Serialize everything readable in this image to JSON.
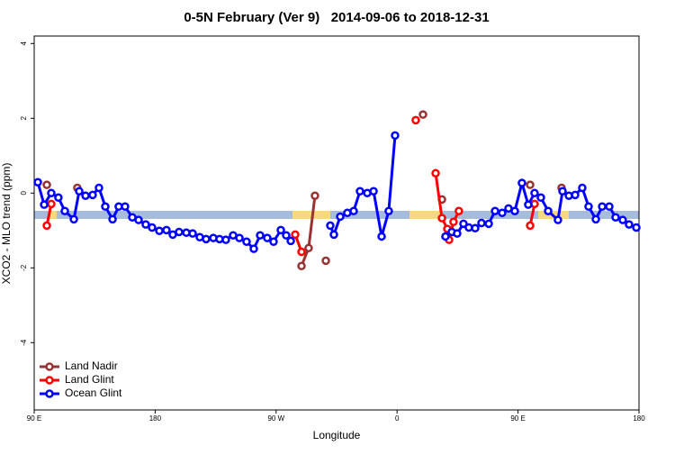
{
  "chart_data": {
    "type": "line",
    "title": "0-5N February (Ver 9)   2014-09-06 to 2018-12-31",
    "x_label": "Longitude",
    "y_label": "XCO2 - MLO trend (ppm)",
    "xlim": [
      90,
      540
    ],
    "ylim": [
      -5.8,
      4.2
    ],
    "xticks": [
      {
        "value": 90,
        "label": "90 E"
      },
      180,
      {
        "value": 270,
        "label": "90 W"
      },
      {
        "value": 360,
        "label": "0"
      },
      {
        "value": 450,
        "label": "90 E"
      },
      {
        "value": 540,
        "label": "180"
      }
    ],
    "yticks": [
      -4,
      -2,
      0,
      2,
      4
    ],
    "legend": "bottom-left",
    "series": [
      {
        "name": "Land Nadir",
        "color": "#993333",
        "x": [
          99.4,
          null,
          122.1,
          null,
          288.9,
          294.2,
          298.9,
          null,
          307,
          null,
          379.3,
          null,
          393.4,
          null,
          459,
          null,
          482.4
        ],
        "values": [
          0.22,
          null,
          0.14,
          null,
          -1.95,
          -1.47,
          -0.07,
          null,
          -1.81,
          null,
          2.1,
          null,
          -0.17,
          null,
          0.22,
          null,
          0.14
        ]
      },
      {
        "name": "Land Glint",
        "color": "#ff0000",
        "x": [
          99.4,
          102.7,
          null,
          284.2,
          288.9,
          null,
          373.9,
          null,
          388.7,
          393.4,
          397.4,
          398.7,
          402,
          406,
          null,
          459,
          462.3
        ],
        "values": [
          -0.87,
          -0.29,
          null,
          -1.11,
          -1.57,
          null,
          1.95,
          null,
          0.53,
          -0.67,
          -0.96,
          -1.25,
          -0.77,
          -0.48,
          null,
          -0.87,
          -0.29
        ]
      },
      {
        "name": "Ocean Glint",
        "color": "#0000ff",
        "x": [
          92.7,
          97.4,
          102.7,
          108,
          112.8,
          119.5,
          123.5,
          128.2,
          133.5,
          138.2,
          142.9,
          148.3,
          152.9,
          157.6,
          163,
          167.7,
          173,
          177.7,
          183.1,
          188.4,
          193.1,
          197.8,
          203.2,
          207.9,
          213.2,
          217.9,
          223.3,
          227.9,
          232.6,
          238,
          242.7,
          248,
          253.4,
          258.1,
          263.4,
          268.1,
          273.5,
          277.5,
          280.9,
          null,
          310.3,
          313,
          317.7,
          323,
          327.7,
          332.4,
          337.8,
          342.5,
          348.5,
          353.8,
          358.5,
          null,
          396,
          400.7,
          404.7,
          409.4,
          413.4,
          418.1,
          422.8,
          428.2,
          432.9,
          438.2,
          442.9,
          447.6,
          452.9,
          457.6,
          462.3,
          467,
          472.4,
          479.7,
          483.1,
          487.8,
          492.5,
          497.8,
          502.5,
          507.9,
          512.6,
          517.9,
          522.6,
          527.9,
          532.6,
          538
        ],
        "values": [
          0.29,
          -0.31,
          0,
          -0.12,
          -0.48,
          -0.7,
          0.05,
          -0.07,
          -0.05,
          0.14,
          -0.36,
          -0.7,
          -0.36,
          -0.36,
          -0.65,
          -0.72,
          -0.84,
          -0.92,
          -1.01,
          -0.99,
          -1.11,
          -1.04,
          -1.06,
          -1.08,
          -1.18,
          -1.23,
          -1.2,
          -1.23,
          -1.25,
          -1.13,
          -1.2,
          -1.3,
          -1.49,
          -1.13,
          -1.2,
          -1.3,
          -0.99,
          -1.13,
          -1.28,
          null,
          -0.87,
          -1.11,
          -0.63,
          -0.53,
          -0.48,
          0.05,
          0,
          0.05,
          -1.16,
          -0.48,
          1.54,
          null,
          -1.16,
          -1.04,
          -1.08,
          -0.82,
          -0.92,
          -0.94,
          -0.8,
          -0.82,
          -0.48,
          -0.53,
          -0.41,
          -0.48,
          0.27,
          -0.31,
          0,
          -0.12,
          -0.48,
          -0.72,
          0.05,
          -0.07,
          -0.05,
          0.14,
          -0.36,
          -0.7,
          -0.36,
          -0.36,
          -0.65,
          -0.72,
          -0.84,
          -0.92
        ]
      }
    ]
  }
}
